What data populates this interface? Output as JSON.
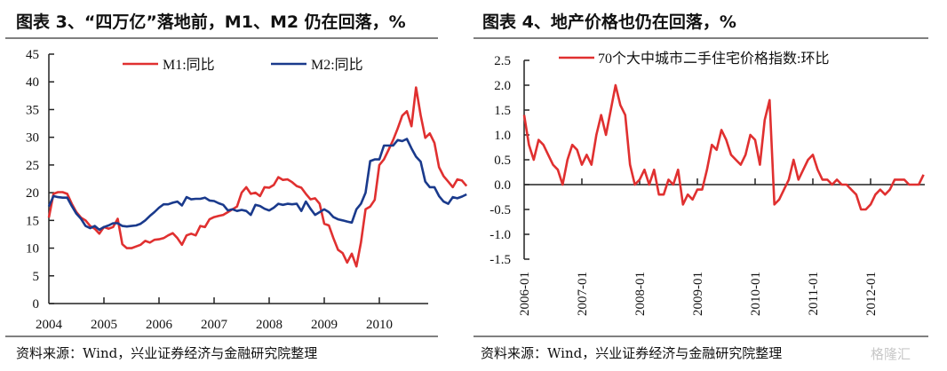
{
  "panels": [
    {
      "title": "图表 3、“四万亿”落地前，M1、M2 仍在回落，%",
      "source": "资料来源：Wind，兴业证券经济与金融研究院整理"
    },
    {
      "title": "图表 4、地产价格也仍在回落，%",
      "source": "资料来源：Wind，兴业证券经济与金融研究院整理",
      "watermark": "格隆汇"
    }
  ],
  "colors": {
    "red": "#e03030",
    "blue": "#1a3a8c",
    "axis": "#222222",
    "rule": "#808080"
  },
  "chart_data": [
    {
      "type": "line",
      "title": "图表 3、“四万亿”落地前，M1、M2 仍在回落，%",
      "xlabel": "",
      "ylabel": "",
      "ylim": [
        0,
        45
      ],
      "yticks": [
        "0",
        "5",
        "10",
        "15",
        "20",
        "25",
        "30",
        "35",
        "40",
        "45"
      ],
      "xlim": [
        2004.0,
        2010.917
      ],
      "xticks": [
        "2004",
        "2005",
        "2006",
        "2007",
        "2008",
        "2009",
        "2010"
      ],
      "legend": [
        "M1:同比",
        "M2:同比"
      ],
      "legend_position": "top",
      "grid": false,
      "x_start": "2004-01",
      "x_step": "month",
      "series": [
        {
          "name": "M1:同比",
          "color": "#e03030",
          "values": [
            15.5,
            19.8,
            20.1,
            20.1,
            19.8,
            18.0,
            16.5,
            15.5,
            15.0,
            14.0,
            13.5,
            12.6,
            13.8,
            13.5,
            13.8,
            15.3,
            10.7,
            10.0,
            10.0,
            10.3,
            10.6,
            11.3,
            11.0,
            11.5,
            11.6,
            11.8,
            12.3,
            12.7,
            11.8,
            10.6,
            12.3,
            12.6,
            12.3,
            14.0,
            13.8,
            15.2,
            15.6,
            15.8,
            16.0,
            16.5,
            17.0,
            17.5,
            20.0,
            21.0,
            19.8,
            20.0,
            19.4,
            21.0,
            20.9,
            21.4,
            22.8,
            22.3,
            22.4,
            21.9,
            21.2,
            20.9,
            19.8,
            18.8,
            19.0,
            18.0,
            14.4,
            14.1,
            11.8,
            9.7,
            9.1,
            7.4,
            9.0,
            6.7,
            11.0,
            17.0,
            17.5,
            18.7,
            25.0,
            26.0,
            27.7,
            29.5,
            31.6,
            33.9,
            34.7,
            32.0,
            39.0,
            34.0,
            29.9,
            30.7,
            29.0,
            24.6,
            23.0,
            22.0,
            21.0,
            22.4,
            22.2,
            21.2
          ],
          "values_note": "monthly estimates read from chart, 2004-01 onward"
        },
        {
          "name": "M2:同比",
          "color": "#1a3a8c",
          "values": [
            17.5,
            19.4,
            19.2,
            19.1,
            19.1,
            17.6,
            16.2,
            15.3,
            14.0,
            13.6,
            14.0,
            13.3,
            13.8,
            14.1,
            14.5,
            14.5,
            14.0,
            13.9,
            14.0,
            14.1,
            14.4,
            15.0,
            15.8,
            16.5,
            17.3,
            17.9,
            17.9,
            18.2,
            18.4,
            17.7,
            19.2,
            18.8,
            18.9,
            18.9,
            19.1,
            18.6,
            18.5,
            18.1,
            17.8,
            16.8,
            17.0,
            16.7,
            16.9,
            16.7,
            16.0,
            17.8,
            17.6,
            17.1,
            16.8,
            17.3,
            18.0,
            17.8,
            18.0,
            17.9,
            18.0,
            16.7,
            18.4,
            17.1,
            16.0,
            16.5,
            17.0,
            16.5,
            15.6,
            15.2,
            15.0,
            14.8,
            14.6,
            17.0,
            18.0,
            20.0,
            25.7,
            26.0,
            26.0,
            28.5,
            28.5,
            28.5,
            29.5,
            29.3,
            29.7,
            28.0,
            26.5,
            25.6,
            22.0,
            21.0,
            21.0,
            19.4,
            18.4,
            18.0,
            19.2,
            19.0,
            19.3,
            19.7
          ],
          "values_note": "monthly estimates read from chart, 2004-01 onward"
        }
      ]
    },
    {
      "type": "line",
      "title": "图表 4、地产价格也仍在回落，%",
      "xlabel": "",
      "ylabel": "",
      "ylim": [
        -1.5,
        2.5
      ],
      "yticks": [
        "-1.5",
        "-1.0",
        "-0.5",
        "0.0",
        "0.5",
        "1.0",
        "1.5",
        "2.0",
        "2.5"
      ],
      "xticks": [
        "2006-01",
        "2007-01",
        "2008-01",
        "2009-01",
        "2010-01",
        "2011-01",
        "2012-01"
      ],
      "legend": [
        "70个大中城市二手住宅价格指数:环比"
      ],
      "legend_position": "top",
      "grid": false,
      "x_start": "2006-01",
      "x_step": "month",
      "series": [
        {
          "name": "70个大中城市二手住宅价格指数:环比",
          "color": "#e03030",
          "values": [
            1.4,
            0.8,
            0.5,
            0.9,
            0.8,
            0.6,
            0.4,
            0.3,
            0.0,
            0.5,
            0.8,
            0.7,
            0.4,
            0.6,
            0.4,
            1.0,
            1.4,
            1.0,
            1.5,
            2.0,
            1.6,
            1.4,
            0.4,
            0.0,
            0.1,
            0.3,
            0.0,
            0.3,
            -0.2,
            -0.2,
            0.1,
            0.0,
            0.3,
            -0.4,
            -0.2,
            -0.3,
            -0.1,
            -0.1,
            0.3,
            0.8,
            0.7,
            1.1,
            0.9,
            0.6,
            0.5,
            0.4,
            0.6,
            1.0,
            0.9,
            0.4,
            1.3,
            1.7,
            -0.4,
            -0.3,
            -0.1,
            0.1,
            0.5,
            0.1,
            0.3,
            0.5,
            0.6,
            0.3,
            0.1,
            0.1,
            0.0,
            0.1,
            0.0,
            0.0,
            -0.1,
            -0.2,
            -0.5,
            -0.5,
            -0.4,
            -0.2,
            -0.1,
            -0.2,
            -0.1,
            0.1,
            0.1,
            0.1,
            0.0,
            0.0,
            0.0,
            0.2
          ],
          "values_note": "monthly estimates read from chart, 2006-01 onward"
        }
      ]
    }
  ]
}
